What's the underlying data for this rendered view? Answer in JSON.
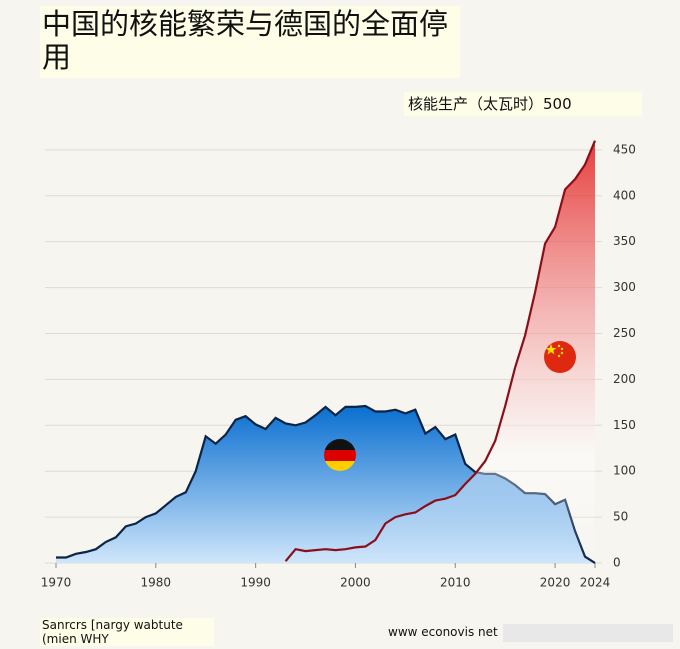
{
  "chart_data": {
    "type": "area",
    "title": "中国的核能繁荣与德国的全面停用",
    "y_label": "核能生产（太瓦时）500",
    "source": "Sanrcrs [nargy wabtute (mien WHY",
    "credit": "www econovis net",
    "x": [
      1970,
      1971,
      1972,
      1973,
      1974,
      1975,
      1976,
      1977,
      1978,
      1979,
      1980,
      1981,
      1982,
      1983,
      1984,
      1985,
      1986,
      1987,
      1988,
      1989,
      1990,
      1991,
      1992,
      1993,
      1994,
      1995,
      1996,
      1997,
      1998,
      1999,
      2000,
      2001,
      2002,
      2003,
      2004,
      2005,
      2006,
      2007,
      2008,
      2009,
      2010,
      2011,
      2012,
      2013,
      2014,
      2015,
      2016,
      2017,
      2018,
      2019,
      2020,
      2021,
      2022,
      2023,
      2024
    ],
    "series": [
      {
        "name": "德国",
        "color": "#0a6fd0",
        "line_color": "#0d2445",
        "values": [
          6,
          6,
          10,
          12,
          15,
          23,
          28,
          40,
          43,
          50,
          54,
          63,
          72,
          77,
          100,
          138,
          130,
          140,
          156,
          160,
          151,
          146,
          158,
          152,
          150,
          153,
          161,
          170,
          161,
          170,
          170,
          171,
          165,
          165,
          167,
          163,
          167,
          141,
          148,
          135,
          140,
          108,
          99,
          97,
          97,
          92,
          85,
          76,
          76,
          75,
          64,
          69,
          35,
          7,
          0
        ]
      },
      {
        "name": "中国",
        "color": "#e00000",
        "line_color": "#8b0f1a",
        "values": [
          null,
          null,
          null,
          null,
          null,
          null,
          null,
          null,
          null,
          null,
          null,
          null,
          null,
          null,
          null,
          null,
          null,
          null,
          null,
          null,
          null,
          null,
          null,
          2,
          15,
          13,
          14,
          15,
          14,
          15,
          17,
          18,
          25,
          43,
          50,
          53,
          55,
          62,
          68,
          70,
          74,
          86,
          97,
          111,
          133,
          171,
          213,
          248,
          295,
          348,
          366,
          407,
          418,
          434,
          460
        ]
      }
    ],
    "xlim": [
      1970,
      2024
    ],
    "xticks": [
      1970,
      1980,
      1990,
      2000,
      2010,
      2020,
      2024
    ],
    "ylim": [
      0,
      460
    ],
    "yticks": [
      0,
      50,
      100,
      150,
      200,
      250,
      300,
      350,
      400,
      450
    ],
    "grid": true
  }
}
